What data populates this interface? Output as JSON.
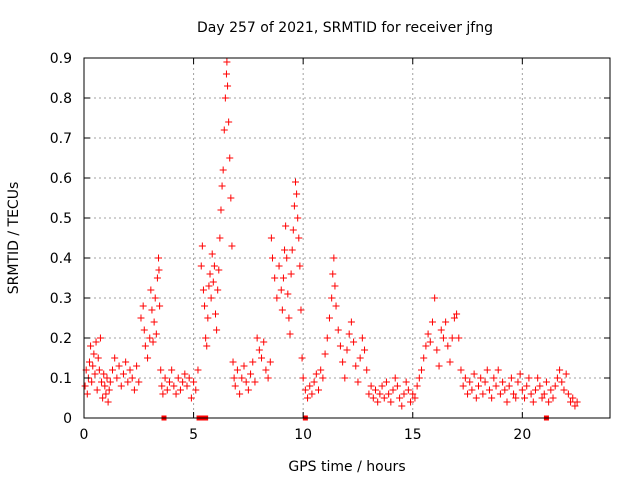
{
  "chart_data": {
    "type": "scatter",
    "title": "Day 257 of 2021, SRMTID for receiver jfng",
    "xlabel": "GPS time / hours",
    "ylabel": "SRMTID / TECUs",
    "xlim": [
      0,
      24
    ],
    "ylim": [
      0,
      0.9
    ],
    "xticks": [
      0,
      5,
      10,
      15,
      20
    ],
    "xtick_labels": [
      "0",
      "5",
      "10",
      "15",
      "20"
    ],
    "yticks": [
      0,
      0.1,
      0.2,
      0.3,
      0.4,
      0.5,
      0.6,
      0.7,
      0.8,
      0.9
    ],
    "ytick_labels": [
      "0",
      "0.1",
      "0.2",
      "0.3",
      "0.4",
      "0.5",
      "0.6",
      "0.7",
      "0.8",
      "0.9"
    ],
    "grid": true,
    "marker": "+",
    "series_color": "#ff0000",
    "baseline_markers_x": [
      3.65,
      5.25,
      5.4,
      5.55,
      10.1,
      21.1
    ],
    "series": [
      {
        "name": "SRMTID",
        "points": [
          [
            0.05,
            0.08
          ],
          [
            0.1,
            0.12
          ],
          [
            0.15,
            0.06
          ],
          [
            0.2,
            0.1
          ],
          [
            0.25,
            0.14
          ],
          [
            0.3,
            0.18
          ],
          [
            0.35,
            0.09
          ],
          [
            0.4,
            0.13
          ],
          [
            0.45,
            0.16
          ],
          [
            0.5,
            0.11
          ],
          [
            0.55,
            0.19
          ],
          [
            0.6,
            0.07
          ],
          [
            0.65,
            0.15
          ],
          [
            0.7,
            0.12
          ],
          [
            0.75,
            0.2
          ],
          [
            0.8,
            0.09
          ],
          [
            0.85,
            0.05
          ],
          [
            0.9,
            0.11
          ],
          [
            0.95,
            0.08
          ],
          [
            1.0,
            0.06
          ],
          [
            1.05,
            0.1
          ],
          [
            1.1,
            0.04
          ],
          [
            1.15,
            0.07
          ],
          [
            1.2,
            0.09
          ],
          [
            1.3,
            0.12
          ],
          [
            1.4,
            0.15
          ],
          [
            1.5,
            0.1
          ],
          [
            1.6,
            0.13
          ],
          [
            1.7,
            0.08
          ],
          [
            1.8,
            0.11
          ],
          [
            1.9,
            0.14
          ],
          [
            2.0,
            0.09
          ],
          [
            2.1,
            0.12
          ],
          [
            2.2,
            0.1
          ],
          [
            2.3,
            0.07
          ],
          [
            2.4,
            0.13
          ],
          [
            2.5,
            0.09
          ],
          [
            2.6,
            0.25
          ],
          [
            2.7,
            0.28
          ],
          [
            2.75,
            0.22
          ],
          [
            2.8,
            0.18
          ],
          [
            2.9,
            0.15
          ],
          [
            3.0,
            0.2
          ],
          [
            3.05,
            0.32
          ],
          [
            3.1,
            0.27
          ],
          [
            3.15,
            0.19
          ],
          [
            3.2,
            0.24
          ],
          [
            3.25,
            0.3
          ],
          [
            3.3,
            0.21
          ],
          [
            3.35,
            0.35
          ],
          [
            3.4,
            0.4
          ],
          [
            3.42,
            0.37
          ],
          [
            3.45,
            0.28
          ],
          [
            3.5,
            0.12
          ],
          [
            3.55,
            0.08
          ],
          [
            3.6,
            0.06
          ],
          [
            3.7,
            0.1
          ],
          [
            3.8,
            0.07
          ],
          [
            3.9,
            0.09
          ],
          [
            4.0,
            0.12
          ],
          [
            4.1,
            0.08
          ],
          [
            4.2,
            0.06
          ],
          [
            4.3,
            0.1
          ],
          [
            4.4,
            0.07
          ],
          [
            4.5,
            0.09
          ],
          [
            4.6,
            0.11
          ],
          [
            4.7,
            0.08
          ],
          [
            4.8,
            0.1
          ],
          [
            4.9,
            0.05
          ],
          [
            5.0,
            0.09
          ],
          [
            5.1,
            0.07
          ],
          [
            5.2,
            0.12
          ],
          [
            5.35,
            0.38
          ],
          [
            5.4,
            0.43
          ],
          [
            5.45,
            0.32
          ],
          [
            5.5,
            0.28
          ],
          [
            5.55,
            0.2
          ],
          [
            5.6,
            0.18
          ],
          [
            5.65,
            0.25
          ],
          [
            5.7,
            0.33
          ],
          [
            5.75,
            0.36
          ],
          [
            5.8,
            0.3
          ],
          [
            5.85,
            0.41
          ],
          [
            5.9,
            0.34
          ],
          [
            5.95,
            0.38
          ],
          [
            6.0,
            0.26
          ],
          [
            6.05,
            0.22
          ],
          [
            6.1,
            0.32
          ],
          [
            6.15,
            0.37
          ],
          [
            6.2,
            0.45
          ],
          [
            6.25,
            0.52
          ],
          [
            6.3,
            0.58
          ],
          [
            6.35,
            0.62
          ],
          [
            6.4,
            0.72
          ],
          [
            6.45,
            0.8
          ],
          [
            6.5,
            0.86
          ],
          [
            6.52,
            0.89
          ],
          [
            6.55,
            0.83
          ],
          [
            6.6,
            0.74
          ],
          [
            6.65,
            0.65
          ],
          [
            6.7,
            0.55
          ],
          [
            6.75,
            0.43
          ],
          [
            6.8,
            0.14
          ],
          [
            6.85,
            0.1
          ],
          [
            6.9,
            0.08
          ],
          [
            7.0,
            0.12
          ],
          [
            7.1,
            0.06
          ],
          [
            7.2,
            0.1
          ],
          [
            7.3,
            0.13
          ],
          [
            7.4,
            0.09
          ],
          [
            7.5,
            0.07
          ],
          [
            7.6,
            0.11
          ],
          [
            7.7,
            0.14
          ],
          [
            7.8,
            0.09
          ],
          [
            7.9,
            0.2
          ],
          [
            8.0,
            0.17
          ],
          [
            8.1,
            0.15
          ],
          [
            8.2,
            0.19
          ],
          [
            8.3,
            0.12
          ],
          [
            8.4,
            0.1
          ],
          [
            8.5,
            0.14
          ],
          [
            8.55,
            0.45
          ],
          [
            8.6,
            0.4
          ],
          [
            8.7,
            0.35
          ],
          [
            8.8,
            0.3
          ],
          [
            8.9,
            0.38
          ],
          [
            9.0,
            0.32
          ],
          [
            9.05,
            0.27
          ],
          [
            9.1,
            0.35
          ],
          [
            9.15,
            0.42
          ],
          [
            9.2,
            0.48
          ],
          [
            9.25,
            0.4
          ],
          [
            9.3,
            0.31
          ],
          [
            9.35,
            0.25
          ],
          [
            9.4,
            0.21
          ],
          [
            9.45,
            0.36
          ],
          [
            9.5,
            0.42
          ],
          [
            9.55,
            0.47
          ],
          [
            9.6,
            0.53
          ],
          [
            9.65,
            0.59
          ],
          [
            9.7,
            0.56
          ],
          [
            9.75,
            0.5
          ],
          [
            9.8,
            0.45
          ],
          [
            9.85,
            0.38
          ],
          [
            9.9,
            0.27
          ],
          [
            9.95,
            0.15
          ],
          [
            10.0,
            0.1
          ],
          [
            10.1,
            0.07
          ],
          [
            10.2,
            0.05
          ],
          [
            10.3,
            0.08
          ],
          [
            10.4,
            0.06
          ],
          [
            10.5,
            0.09
          ],
          [
            10.6,
            0.11
          ],
          [
            10.7,
            0.07
          ],
          [
            10.8,
            0.12
          ],
          [
            10.9,
            0.1
          ],
          [
            11.0,
            0.16
          ],
          [
            11.1,
            0.2
          ],
          [
            11.2,
            0.25
          ],
          [
            11.3,
            0.3
          ],
          [
            11.35,
            0.36
          ],
          [
            11.4,
            0.4
          ],
          [
            11.45,
            0.33
          ],
          [
            11.5,
            0.28
          ],
          [
            11.6,
            0.22
          ],
          [
            11.7,
            0.18
          ],
          [
            11.8,
            0.14
          ],
          [
            11.9,
            0.1
          ],
          [
            12.0,
            0.17
          ],
          [
            12.1,
            0.21
          ],
          [
            12.2,
            0.24
          ],
          [
            12.3,
            0.19
          ],
          [
            12.4,
            0.13
          ],
          [
            12.5,
            0.09
          ],
          [
            12.6,
            0.15
          ],
          [
            12.7,
            0.2
          ],
          [
            12.8,
            0.17
          ],
          [
            12.9,
            0.12
          ],
          [
            13.0,
            0.06
          ],
          [
            13.1,
            0.08
          ],
          [
            13.2,
            0.05
          ],
          [
            13.3,
            0.07
          ],
          [
            13.4,
            0.04
          ],
          [
            13.5,
            0.06
          ],
          [
            13.6,
            0.08
          ],
          [
            13.7,
            0.05
          ],
          [
            13.8,
            0.09
          ],
          [
            13.9,
            0.06
          ],
          [
            14.0,
            0.04
          ],
          [
            14.1,
            0.07
          ],
          [
            14.2,
            0.1
          ],
          [
            14.3,
            0.08
          ],
          [
            14.4,
            0.05
          ],
          [
            14.5,
            0.03
          ],
          [
            14.6,
            0.06
          ],
          [
            14.7,
            0.09
          ],
          [
            14.8,
            0.07
          ],
          [
            14.9,
            0.04
          ],
          [
            15.0,
            0.06
          ],
          [
            15.1,
            0.05
          ],
          [
            15.2,
            0.08
          ],
          [
            15.3,
            0.1
          ],
          [
            15.4,
            0.12
          ],
          [
            15.5,
            0.15
          ],
          [
            15.6,
            0.18
          ],
          [
            15.7,
            0.21
          ],
          [
            15.8,
            0.19
          ],
          [
            15.9,
            0.24
          ],
          [
            16.0,
            0.3
          ],
          [
            16.1,
            0.17
          ],
          [
            16.2,
            0.13
          ],
          [
            16.3,
            0.22
          ],
          [
            16.4,
            0.2
          ],
          [
            16.5,
            0.24
          ],
          [
            16.6,
            0.18
          ],
          [
            16.7,
            0.14
          ],
          [
            16.8,
            0.2
          ],
          [
            16.9,
            0.25
          ],
          [
            17.0,
            0.26
          ],
          [
            17.1,
            0.2
          ],
          [
            17.2,
            0.12
          ],
          [
            17.3,
            0.08
          ],
          [
            17.4,
            0.1
          ],
          [
            17.5,
            0.06
          ],
          [
            17.6,
            0.09
          ],
          [
            17.7,
            0.07
          ],
          [
            17.8,
            0.11
          ],
          [
            17.9,
            0.05
          ],
          [
            18.0,
            0.08
          ],
          [
            18.1,
            0.1
          ],
          [
            18.2,
            0.06
          ],
          [
            18.3,
            0.09
          ],
          [
            18.4,
            0.12
          ],
          [
            18.5,
            0.07
          ],
          [
            18.6,
            0.05
          ],
          [
            18.7,
            0.1
          ],
          [
            18.8,
            0.08
          ],
          [
            18.9,
            0.12
          ],
          [
            19.0,
            0.06
          ],
          [
            19.1,
            0.09
          ],
          [
            19.2,
            0.07
          ],
          [
            19.3,
            0.04
          ],
          [
            19.4,
            0.08
          ],
          [
            19.5,
            0.1
          ],
          [
            19.6,
            0.06
          ],
          [
            19.7,
            0.05
          ],
          [
            19.8,
            0.09
          ],
          [
            19.9,
            0.11
          ],
          [
            20.0,
            0.07
          ],
          [
            20.1,
            0.05
          ],
          [
            20.2,
            0.08
          ],
          [
            20.3,
            0.1
          ],
          [
            20.4,
            0.06
          ],
          [
            20.5,
            0.04
          ],
          [
            20.6,
            0.07
          ],
          [
            20.7,
            0.1
          ],
          [
            20.8,
            0.08
          ],
          [
            20.9,
            0.05
          ],
          [
            21.0,
            0.06
          ],
          [
            21.1,
            0.09
          ],
          [
            21.2,
            0.04
          ],
          [
            21.3,
            0.07
          ],
          [
            21.4,
            0.05
          ],
          [
            21.5,
            0.08
          ],
          [
            21.6,
            0.1
          ],
          [
            21.7,
            0.12
          ],
          [
            21.8,
            0.09
          ],
          [
            21.9,
            0.07
          ],
          [
            22.0,
            0.11
          ],
          [
            22.1,
            0.06
          ],
          [
            22.2,
            0.04
          ],
          [
            22.3,
            0.05
          ],
          [
            22.4,
            0.03
          ],
          [
            22.5,
            0.04
          ]
        ]
      }
    ]
  }
}
